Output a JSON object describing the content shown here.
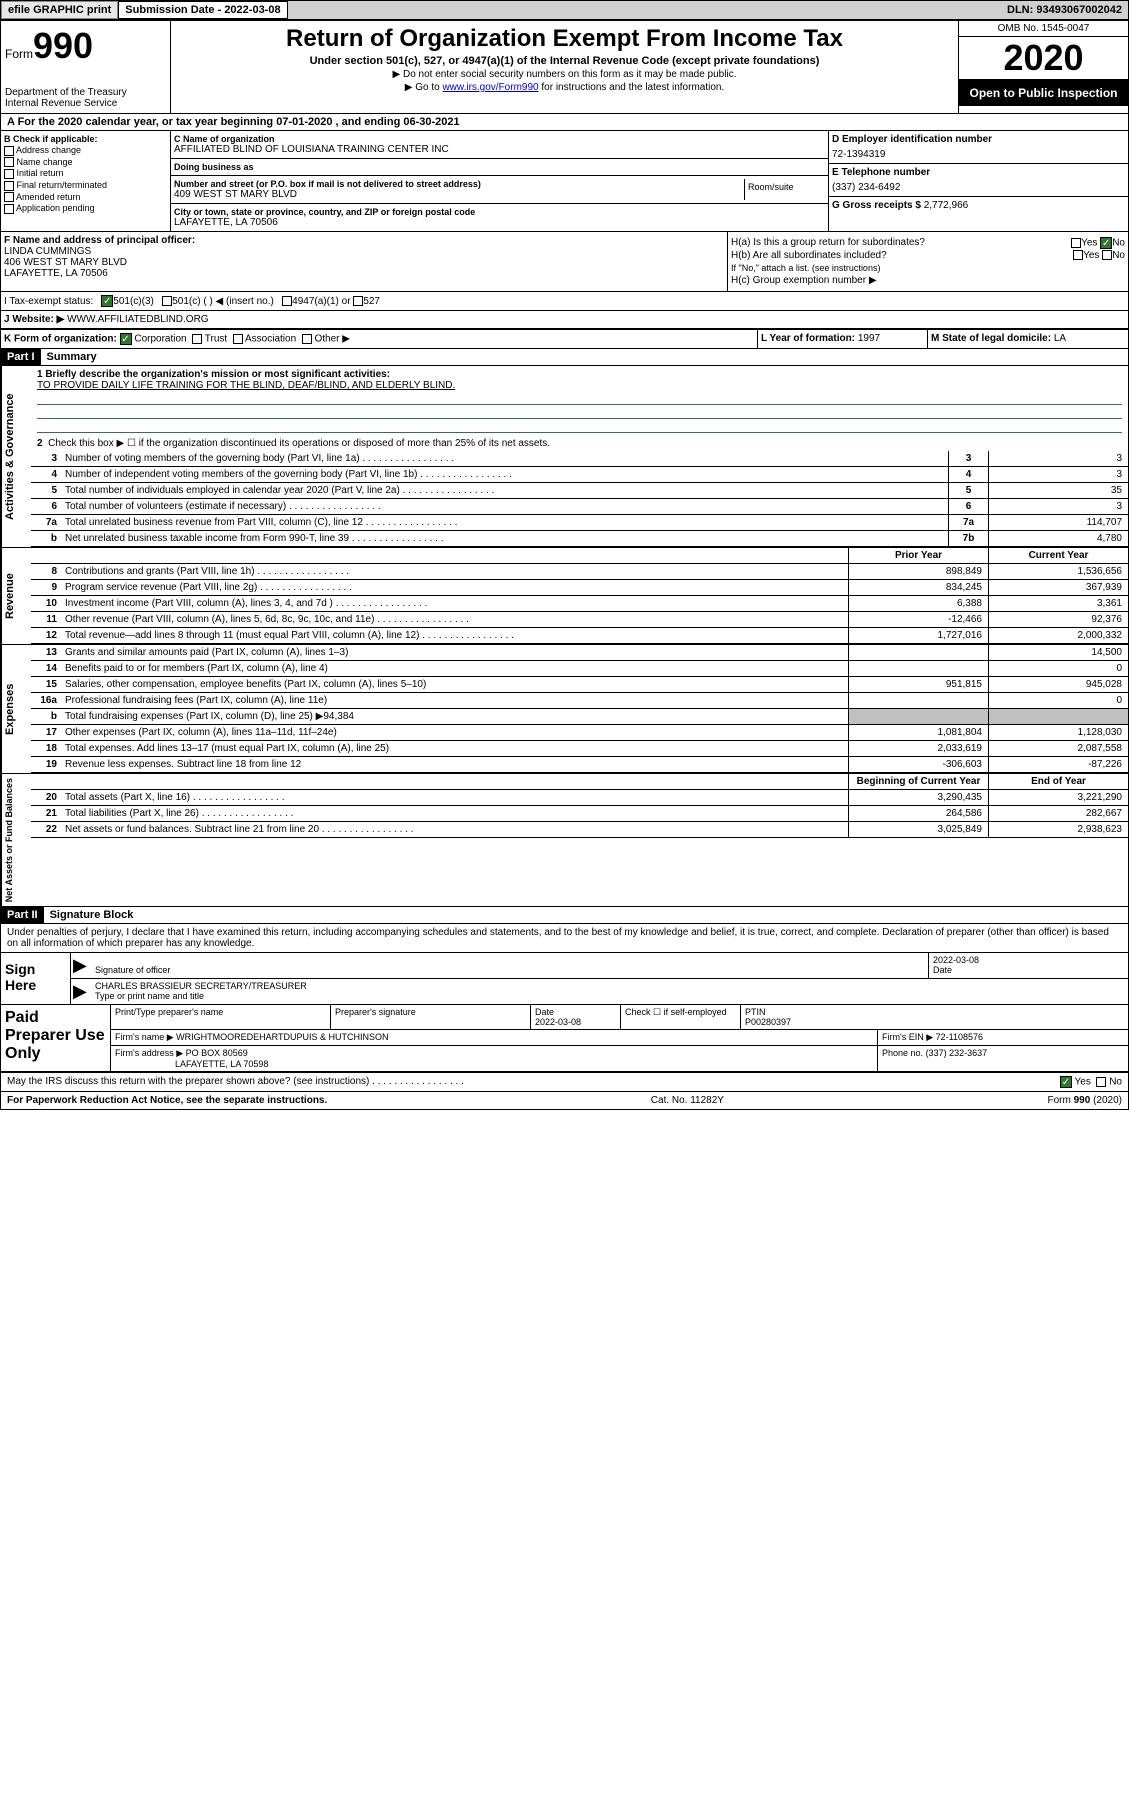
{
  "topbar": {
    "efile": "efile GRAPHIC print",
    "sub_label": "Submission Date - 2022-03-08",
    "dln_label": "DLN: 93493067002042"
  },
  "header": {
    "form_prefix": "Form",
    "form_num": "990",
    "dept": "Department of the Treasury\nInternal Revenue Service",
    "title": "Return of Organization Exempt From Income Tax",
    "subtitle": "Under section 501(c), 527, or 4947(a)(1) of the Internal Revenue Code (except private foundations)",
    "note1": "▶ Do not enter social security numbers on this form as it may be made public.",
    "note2_pre": "▶ Go to ",
    "note2_link": "www.irs.gov/Form990",
    "note2_post": " for instructions and the latest information.",
    "omb": "OMB No. 1545-0047",
    "year": "2020",
    "open": "Open to Public Inspection"
  },
  "period": "A For the 2020 calendar year, or tax year beginning 07-01-2020    , and ending 06-30-2021",
  "section_b": {
    "hdr": "B Check if applicable:",
    "opts": [
      "Address change",
      "Name change",
      "Initial return",
      "Final return/terminated",
      "Amended return",
      "Application pending"
    ]
  },
  "section_c": {
    "name_lbl": "C Name of organization",
    "name": "AFFILIATED BLIND OF LOUISIANA TRAINING CENTER INC",
    "dba_lbl": "Doing business as",
    "dba": "",
    "addr_lbl": "Number and street (or P.O. box if mail is not delivered to street address)",
    "addr": "409 WEST ST MARY BLVD",
    "room_lbl": "Room/suite",
    "city_lbl": "City or town, state or province, country, and ZIP or foreign postal code",
    "city": "LAFAYETTE, LA  70506"
  },
  "section_d": {
    "ein_lbl": "D Employer identification number",
    "ein": "72-1394319",
    "phone_lbl": "E Telephone number",
    "phone": "(337) 234-6492",
    "gross_lbl": "G Gross receipts $ ",
    "gross": "2,772,966"
  },
  "section_f": {
    "lbl": "F  Name and address of principal officer:",
    "name": "LINDA CUMMINGS",
    "addr1": "406 WEST ST MARY BLVD",
    "addr2": "LAFAYETTE, LA  70506"
  },
  "section_h": {
    "ha": "H(a)  Is this a group return for subordinates?",
    "hb": "H(b)  Are all subordinates included?",
    "hb_note": "If \"No,\" attach a list. (see instructions)",
    "hc": "H(c)  Group exemption number ▶"
  },
  "section_i": {
    "lbl": "I    Tax-exempt status:",
    "opt1": "501(c)(3)",
    "opt2": "501(c) (   ) ◀ (insert no.)",
    "opt3": "4947(a)(1) or",
    "opt4": "527"
  },
  "section_j": {
    "lbl": "J    Website: ▶",
    "val": "WWW.AFFILIATEDBLIND.ORG"
  },
  "section_k": {
    "lbl": "K Form of organization:",
    "opts": [
      "Corporation",
      "Trust",
      "Association",
      "Other ▶"
    ]
  },
  "section_l": {
    "lbl": "L Year of formation: ",
    "val": "1997"
  },
  "section_m": {
    "lbl": "M State of legal domicile: ",
    "val": "LA"
  },
  "part1": {
    "hdr": "Part I",
    "title": "Summary",
    "line1_lbl": "1  Briefly describe the organization's mission or most significant activities:",
    "line1_val": "TO PROVIDE DAILY LIFE TRAINING FOR THE BLIND, DEAF/BLIND, AND ELDERLY BLIND.",
    "line2": "Check this box ▶ ☐  if the organization discontinued its operations or disposed of more than 25% of its net assets.",
    "rows_ag": [
      {
        "n": "3",
        "t": "Number of voting members of the governing body (Part VI, line 1a)",
        "c": "3",
        "v": "3"
      },
      {
        "n": "4",
        "t": "Number of independent voting members of the governing body (Part VI, line 1b)",
        "c": "4",
        "v": "3"
      },
      {
        "n": "5",
        "t": "Total number of individuals employed in calendar year 2020 (Part V, line 2a)",
        "c": "5",
        "v": "35"
      },
      {
        "n": "6",
        "t": "Total number of volunteers (estimate if necessary)",
        "c": "6",
        "v": "3"
      },
      {
        "n": "7a",
        "t": "Total unrelated business revenue from Part VIII, column (C), line 12",
        "c": "7a",
        "v": "114,707"
      },
      {
        "n": "b",
        "t": "Net unrelated business taxable income from Form 990-T, line 39",
        "c": "7b",
        "v": "4,780"
      }
    ],
    "col_prior": "Prior Year",
    "col_current": "Current Year",
    "rows_rev": [
      {
        "n": "8",
        "t": "Contributions and grants (Part VIII, line 1h)",
        "v1": "898,849",
        "v2": "1,536,656"
      },
      {
        "n": "9",
        "t": "Program service revenue (Part VIII, line 2g)",
        "v1": "834,245",
        "v2": "367,939"
      },
      {
        "n": "10",
        "t": "Investment income (Part VIII, column (A), lines 3, 4, and 7d )",
        "v1": "6,388",
        "v2": "3,361"
      },
      {
        "n": "11",
        "t": "Other revenue (Part VIII, column (A), lines 5, 6d, 8c, 9c, 10c, and 11e)",
        "v1": "-12,466",
        "v2": "92,376"
      },
      {
        "n": "12",
        "t": "Total revenue—add lines 8 through 11 (must equal Part VIII, column (A), line 12)",
        "v1": "1,727,016",
        "v2": "2,000,332"
      }
    ],
    "rows_exp": [
      {
        "n": "13",
        "t": "Grants and similar amounts paid (Part IX, column (A), lines 1–3)",
        "v1": "",
        "v2": "14,500"
      },
      {
        "n": "14",
        "t": "Benefits paid to or for members (Part IX, column (A), line 4)",
        "v1": "",
        "v2": "0"
      },
      {
        "n": "15",
        "t": "Salaries, other compensation, employee benefits (Part IX, column (A), lines 5–10)",
        "v1": "951,815",
        "v2": "945,028"
      },
      {
        "n": "16a",
        "t": "Professional fundraising fees (Part IX, column (A), line 11e)",
        "v1": "",
        "v2": "0"
      },
      {
        "n": "b",
        "t": "Total fundraising expenses (Part IX, column (D), line 25) ▶94,384",
        "v1": "",
        "v2": "",
        "gray": true
      },
      {
        "n": "17",
        "t": "Other expenses (Part IX, column (A), lines 11a–11d, 11f–24e)",
        "v1": "1,081,804",
        "v2": "1,128,030"
      },
      {
        "n": "18",
        "t": "Total expenses. Add lines 13–17 (must equal Part IX, column (A), line 25)",
        "v1": "2,033,619",
        "v2": "2,087,558"
      },
      {
        "n": "19",
        "t": "Revenue less expenses. Subtract line 18 from line 12",
        "v1": "-306,603",
        "v2": "-87,226"
      }
    ],
    "col_begin": "Beginning of Current Year",
    "col_end": "End of Year",
    "rows_na": [
      {
        "n": "20",
        "t": "Total assets (Part X, line 16)",
        "v1": "3,290,435",
        "v2": "3,221,290"
      },
      {
        "n": "21",
        "t": "Total liabilities (Part X, line 26)",
        "v1": "264,586",
        "v2": "282,667"
      },
      {
        "n": "22",
        "t": "Net assets or fund balances. Subtract line 21 from line 20",
        "v1": "3,025,849",
        "v2": "2,938,623"
      }
    ],
    "side_ag": "Activities & Governance",
    "side_rev": "Revenue",
    "side_exp": "Expenses",
    "side_na": "Net Assets or Fund Balances"
  },
  "part2": {
    "hdr": "Part II",
    "title": "Signature Block",
    "penalties": "Under penalties of perjury, I declare that I have examined this return, including accompanying schedules and statements, and to the best of my knowledge and belief, it is true, correct, and complete. Declaration of preparer (other than officer) is based on all information of which preparer has any knowledge."
  },
  "sign": {
    "lbl": "Sign Here",
    "sig_lbl": "Signature of officer",
    "date_lbl": "Date",
    "date": "2022-03-08",
    "name": "CHARLES BRASSIEUR  SECRETARY/TREASURER",
    "name_lbl": "Type or print name and title"
  },
  "preparer": {
    "lbl": "Paid Preparer Use Only",
    "print_lbl": "Print/Type preparer's name",
    "sig_lbl": "Preparer's signature",
    "date_lbl": "Date",
    "date": "2022-03-08",
    "check_lbl": "Check ☐ if self-employed",
    "ptin_lbl": "PTIN",
    "ptin": "P00280397",
    "firm_name_lbl": "Firm's name      ▶",
    "firm_name": "WRIGHTMOOREDEHARTDUPUIS & HUTCHINSON",
    "firm_ein_lbl": "Firm's EIN ▶",
    "firm_ein": "72-1108576",
    "firm_addr_lbl": "Firm's address ▶",
    "firm_addr1": "PO BOX 80569",
    "firm_addr2": "LAFAYETTE, LA  70598",
    "phone_lbl": "Phone no.",
    "phone": "(337) 232-3637"
  },
  "discuss": {
    "text": "May the IRS discuss this return with the preparer shown above? (see instructions)",
    "yes": "Yes",
    "no": "No"
  },
  "footer": {
    "left": "For Paperwork Reduction Act Notice, see the separate instructions.",
    "center": "Cat. No. 11282Y",
    "right": "Form 990 (2020)"
  }
}
